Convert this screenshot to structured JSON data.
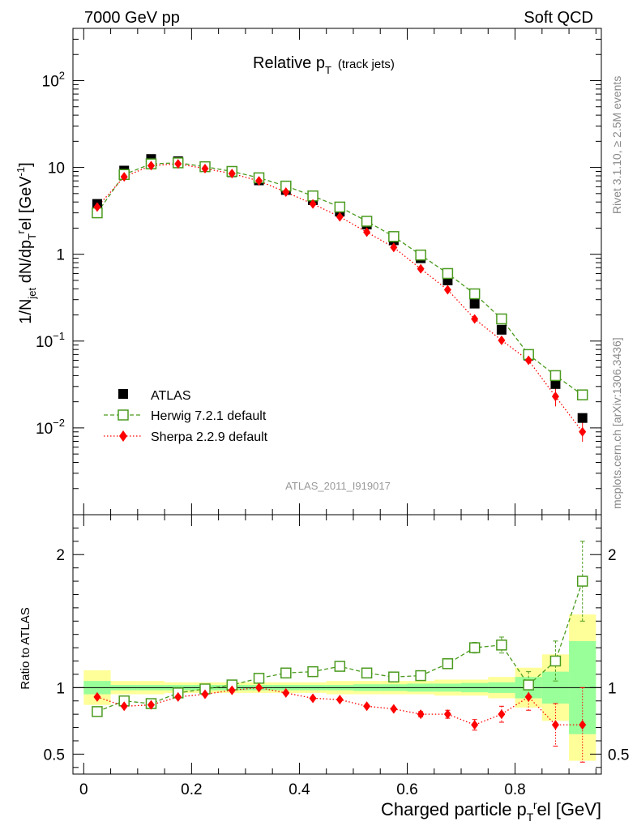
{
  "header": {
    "left": "7000 GeV pp",
    "right": "Soft QCD"
  },
  "side_labels": {
    "rivet": "Rivet 3.1.10, ≥ 2.5M events",
    "source": "mcplots.cern.ch [arXiv:1306.3436]"
  },
  "chart_data": [
    {
      "type": "scatter",
      "panel": "main",
      "title_main": "Relative p",
      "title_sub": "T",
      "title_extra": "(track jets)",
      "watermark": "ATLAS_2011_I919017",
      "ylabel": "1/N_jet dN/dp_T^rel [GeV^-1]",
      "yscale": "log",
      "ylim": [
        0.001,
        400
      ],
      "xlim": [
        -0.02,
        0.96
      ],
      "yticks": [
        {
          "value": 100,
          "base": "10",
          "exp": "2"
        },
        {
          "value": 10,
          "base": "10",
          "exp": ""
        },
        {
          "value": 1,
          "base": "1",
          "exp": ""
        },
        {
          "value": 0.1,
          "base": "10",
          "exp": "−1"
        },
        {
          "value": 0.01,
          "base": "10",
          "exp": "−2"
        }
      ],
      "x": [
        0.025,
        0.075,
        0.125,
        0.175,
        0.225,
        0.275,
        0.325,
        0.375,
        0.425,
        0.475,
        0.525,
        0.575,
        0.625,
        0.675,
        0.725,
        0.775,
        0.825,
        0.875,
        0.925
      ],
      "legend_position": "lower-left",
      "series": [
        {
          "name": "ATLAS",
          "style": "data",
          "color": "#000000",
          "values": [
            3.8,
            9.2,
            12.5,
            11.8,
            10.3,
            8.8,
            7.1,
            5.5,
            4.2,
            3.1,
            2.2,
            1.45,
            0.9,
            0.5,
            0.27,
            0.135,
            0.068,
            0.032,
            0.013
          ]
        },
        {
          "name": "Herwig 7.2.1 default",
          "style": "open-square-dashed",
          "color": "#4a9a1e",
          "values": [
            3.0,
            8.3,
            11.0,
            11.3,
            10.2,
            9.0,
            7.6,
            6.1,
            4.7,
            3.5,
            2.4,
            1.6,
            0.98,
            0.6,
            0.35,
            0.18,
            0.07,
            0.04,
            0.024
          ]
        },
        {
          "name": "Sherpa 2.2.9 default",
          "style": "diamond-dotted",
          "color": "#ff0000",
          "values": [
            3.5,
            7.8,
            10.5,
            11.0,
            9.7,
            8.5,
            7.0,
            5.2,
            3.8,
            2.7,
            1.8,
            1.2,
            0.68,
            0.39,
            0.18,
            0.102,
            0.06,
            0.023,
            0.009
          ]
        }
      ]
    },
    {
      "type": "scatter",
      "panel": "ratio",
      "ylabel": "Ratio to ATLAS",
      "xlabel": "Charged particle p_T^rel [GeV]",
      "ylim": [
        0.35,
        2.3
      ],
      "yticks": [
        0.5,
        1,
        2
      ],
      "xticks": [
        0,
        0.2,
        0.4,
        0.6,
        0.8
      ],
      "xtick_labels": [
        "0",
        "0.2",
        "0.4",
        "0.6",
        "0.8"
      ],
      "ytick_labels": [
        "0.5",
        "1",
        "2"
      ],
      "x": [
        0.025,
        0.075,
        0.125,
        0.175,
        0.225,
        0.275,
        0.325,
        0.375,
        0.425,
        0.475,
        0.525,
        0.575,
        0.625,
        0.675,
        0.725,
        0.775,
        0.825,
        0.875,
        0.925
      ],
      "bands": {
        "green_half": [
          0.05,
          0.02,
          0.02,
          0.02,
          0.02,
          0.02,
          0.02,
          0.02,
          0.02,
          0.02,
          0.025,
          0.025,
          0.03,
          0.03,
          0.035,
          0.04,
          0.08,
          0.12,
          0.35
        ],
        "yellow_half": [
          0.13,
          0.05,
          0.05,
          0.04,
          0.04,
          0.04,
          0.04,
          0.04,
          0.04,
          0.05,
          0.05,
          0.05,
          0.05,
          0.06,
          0.06,
          0.08,
          0.15,
          0.25,
          0.55
        ]
      },
      "series": [
        {
          "name": "Herwig 7.2.1 default",
          "color": "#4a9a1e",
          "values": [
            0.82,
            0.9,
            0.88,
            0.96,
            0.99,
            1.02,
            1.07,
            1.11,
            1.12,
            1.16,
            1.11,
            1.08,
            1.09,
            1.18,
            1.3,
            1.32,
            1.02,
            1.2,
            1.8
          ],
          "errors": [
            0.01,
            0.01,
            0.01,
            0.01,
            0.01,
            0.01,
            0.01,
            0.01,
            0.01,
            0.01,
            0.01,
            0.01,
            0.02,
            0.02,
            0.04,
            0.06,
            0.1,
            0.15,
            0.3
          ]
        },
        {
          "name": "Sherpa 2.2.9 default",
          "color": "#ff0000",
          "values": [
            0.93,
            0.86,
            0.87,
            0.93,
            0.95,
            0.98,
            1.0,
            0.96,
            0.92,
            0.91,
            0.86,
            0.84,
            0.8,
            0.8,
            0.72,
            0.8,
            0.93,
            0.72,
            0.72
          ],
          "errors": [
            0.01,
            0.01,
            0.01,
            0.01,
            0.01,
            0.01,
            0.01,
            0.01,
            0.01,
            0.01,
            0.01,
            0.01,
            0.02,
            0.03,
            0.04,
            0.06,
            0.1,
            0.16,
            0.28
          ]
        }
      ]
    }
  ]
}
